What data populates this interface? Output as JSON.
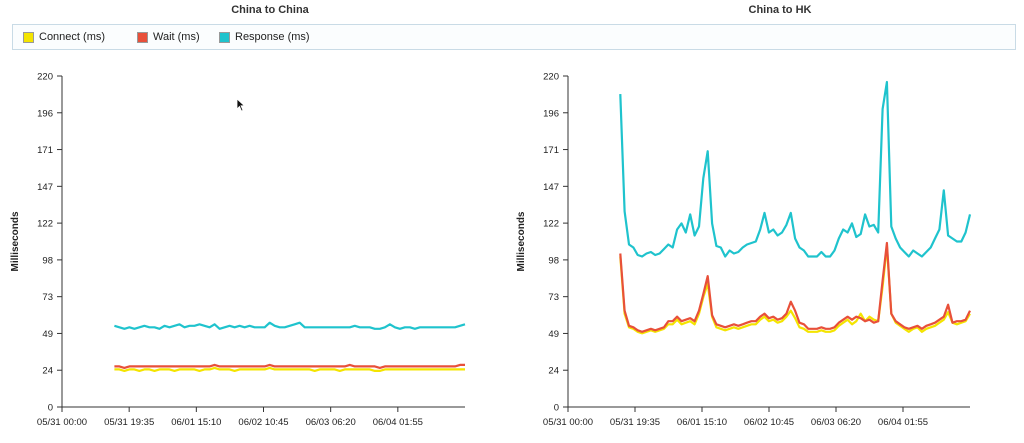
{
  "legend": {
    "items": [
      {
        "label": "Connect (ms)",
        "color": "#f4e400"
      },
      {
        "label": "Wait (ms)",
        "color": "#e8503a"
      },
      {
        "label": "Response (ms)",
        "color": "#1fc3cd"
      }
    ]
  },
  "chart_data": [
    {
      "type": "line",
      "title": "China to China",
      "ylabel": "Milliseconds",
      "ylim": [
        0,
        220
      ],
      "y_ticks": [
        "0",
        "24",
        "49",
        "73",
        "98",
        "122",
        "147",
        "171",
        "196",
        "220"
      ],
      "x_ticks": [
        "05/31 00:00",
        "05/31 19:35",
        "06/01 15:10",
        "06/02 10:45",
        "06/03 06:20",
        "06/04 01:55"
      ],
      "x_start": 0.13,
      "x_end": 1.0,
      "series": [
        {
          "name": "Connect (ms)",
          "color": "#f4e400",
          "values": [
            25,
            25,
            24,
            25,
            25,
            24,
            25,
            25,
            24,
            25,
            25,
            25,
            24,
            25,
            25,
            25,
            25,
            24,
            25,
            25,
            26,
            25,
            25,
            25,
            24,
            25,
            25,
            25,
            25,
            25,
            25,
            26,
            25,
            25,
            25,
            25,
            25,
            25,
            25,
            25,
            24,
            25,
            25,
            25,
            25,
            24,
            25,
            25,
            25,
            25,
            25,
            25,
            24,
            24,
            25,
            25,
            25,
            25,
            25,
            25,
            25,
            25,
            25,
            25,
            25,
            25,
            25,
            25,
            25,
            25,
            25
          ]
        },
        {
          "name": "Wait (ms)",
          "color": "#e8503a",
          "values": [
            27,
            27,
            26,
            27,
            27,
            27,
            27,
            27,
            27,
            27,
            27,
            27,
            27,
            27,
            27,
            27,
            27,
            27,
            27,
            27,
            28,
            27,
            27,
            27,
            27,
            27,
            27,
            27,
            27,
            27,
            27,
            28,
            27,
            27,
            27,
            27,
            27,
            27,
            27,
            27,
            27,
            27,
            27,
            27,
            27,
            27,
            27,
            28,
            27,
            27,
            27,
            27,
            27,
            26,
            27,
            27,
            27,
            27,
            27,
            27,
            27,
            27,
            27,
            27,
            27,
            27,
            27,
            27,
            27,
            28,
            28
          ]
        },
        {
          "name": "Response (ms)",
          "color": "#1fc3cd",
          "values": [
            54,
            53,
            52,
            53,
            52,
            53,
            54,
            53,
            53,
            52,
            54,
            53,
            54,
            55,
            53,
            54,
            54,
            55,
            54,
            53,
            55,
            52,
            53,
            54,
            53,
            54,
            53,
            54,
            53,
            53,
            53,
            56,
            54,
            53,
            53,
            54,
            55,
            56,
            53,
            53,
            53,
            53,
            53,
            53,
            53,
            53,
            53,
            53,
            54,
            53,
            53,
            53,
            52,
            52,
            53,
            55,
            53,
            52,
            53,
            53,
            52,
            53,
            53,
            53,
            53,
            53,
            53,
            53,
            53,
            54,
            55
          ]
        }
      ]
    },
    {
      "type": "line",
      "title": "China to HK",
      "ylabel": "Milliseconds",
      "ylim": [
        0,
        220
      ],
      "y_ticks": [
        "0",
        "24",
        "49",
        "73",
        "98",
        "122",
        "147",
        "171",
        "196",
        "220"
      ],
      "x_ticks": [
        "05/31 00:00",
        "05/31 19:35",
        "06/01 15:10",
        "06/02 10:45",
        "06/03 06:20",
        "06/04 01:55"
      ],
      "x_start": 0.13,
      "x_end": 1.0,
      "series": [
        {
          "name": "Connect (ms)",
          "color": "#f4e400",
          "values": [
            100,
            62,
            53,
            52,
            50,
            49,
            50,
            51,
            50,
            51,
            52,
            55,
            55,
            58,
            55,
            56,
            57,
            55,
            62,
            73,
            82,
            60,
            53,
            52,
            51,
            52,
            53,
            52,
            53,
            54,
            55,
            55,
            58,
            60,
            57,
            58,
            56,
            57,
            60,
            64,
            59,
            53,
            52,
            50,
            50,
            50,
            51,
            50,
            50,
            51,
            54,
            56,
            58,
            55,
            57,
            62,
            57,
            60,
            58,
            57,
            80,
            107,
            62,
            56,
            54,
            52,
            50,
            52,
            53,
            50,
            52,
            53,
            54,
            56,
            58,
            63,
            56,
            55,
            56,
            57,
            62
          ]
        },
        {
          "name": "Wait (ms)",
          "color": "#e8503a",
          "values": [
            102,
            64,
            54,
            53,
            51,
            50,
            51,
            52,
            51,
            52,
            53,
            57,
            57,
            60,
            57,
            58,
            59,
            57,
            64,
            75,
            87,
            61,
            55,
            54,
            53,
            54,
            55,
            54,
            55,
            56,
            57,
            57,
            60,
            62,
            59,
            60,
            58,
            59,
            62,
            70,
            64,
            56,
            55,
            52,
            52,
            52,
            53,
            52,
            52,
            53,
            56,
            58,
            60,
            58,
            60,
            59,
            57,
            58,
            56,
            57,
            84,
            109,
            62,
            57,
            55,
            53,
            52,
            53,
            54,
            52,
            54,
            55,
            56,
            58,
            60,
            68,
            56,
            57,
            57,
            58,
            64
          ]
        },
        {
          "name": "Response (ms)",
          "color": "#1fc3cd",
          "values": [
            208,
            130,
            108,
            106,
            101,
            100,
            102,
            103,
            101,
            102,
            105,
            108,
            106,
            118,
            122,
            116,
            128,
            114,
            120,
            152,
            170,
            122,
            107,
            106,
            100,
            104,
            102,
            103,
            106,
            108,
            109,
            110,
            118,
            129,
            116,
            118,
            114,
            116,
            121,
            129,
            112,
            106,
            104,
            100,
            100,
            100,
            103,
            100,
            100,
            104,
            112,
            118,
            116,
            122,
            113,
            115,
            128,
            120,
            121,
            116,
            198,
            216,
            120,
            112,
            106,
            103,
            100,
            104,
            102,
            100,
            103,
            106,
            112,
            118,
            144,
            114,
            112,
            110,
            110,
            116,
            128
          ]
        }
      ]
    }
  ]
}
